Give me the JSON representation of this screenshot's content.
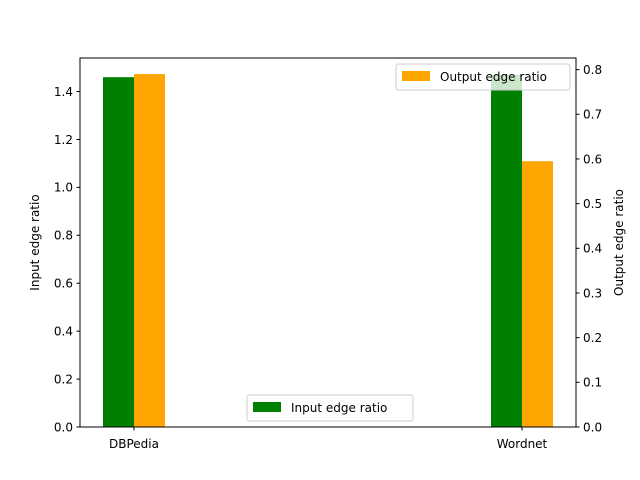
{
  "chart_data": {
    "type": "bar",
    "categories": [
      "DBPedia",
      "Wordnet"
    ],
    "series": [
      {
        "name": "Input edge ratio",
        "axis": "left",
        "color": "#008000",
        "values": [
          1.46,
          1.47
        ]
      },
      {
        "name": "Output edge ratio",
        "axis": "right",
        "color": "#ffa500",
        "values": [
          0.79,
          0.595
        ]
      }
    ],
    "ylabel_left": "Input edge ratio",
    "ylabel_right": "Output edge ratio",
    "ylim_left": [
      0,
      1.54
    ],
    "ylim_right": [
      0,
      0.826
    ],
    "yticks_left": [
      "0.0",
      "0.2",
      "0.4",
      "0.6",
      "0.8",
      "1.0",
      "1.2",
      "1.4"
    ],
    "yticks_right": [
      "0.0",
      "0.1",
      "0.2",
      "0.3",
      "0.4",
      "0.5",
      "0.6",
      "0.7",
      "0.8"
    ],
    "legends": [
      {
        "series": "Output edge ratio",
        "placement": "upper-right"
      },
      {
        "series": "Input edge ratio",
        "placement": "lower-center"
      }
    ],
    "grid": false
  }
}
